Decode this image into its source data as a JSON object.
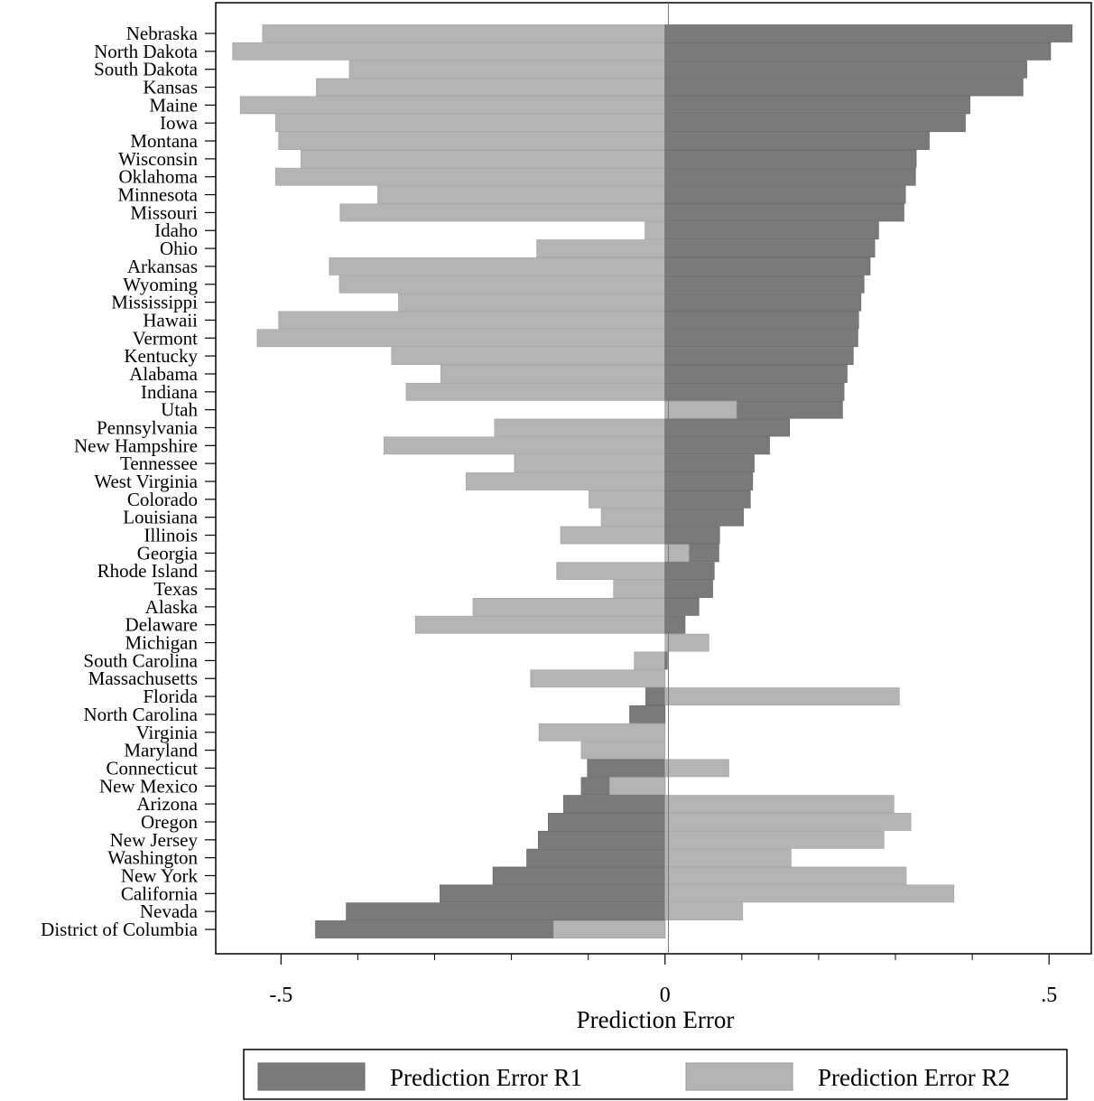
{
  "chart_data": {
    "type": "bar",
    "orientation": "horizontal",
    "xlabel": "Prediction Error",
    "ylabel": "",
    "xlim": [
      -0.585,
      0.555
    ],
    "xticks": [
      -0.5,
      0,
      0.5
    ],
    "xtick_labels": [
      "-.5",
      "0",
      ".5"
    ],
    "minor_xticks": [
      -0.4,
      -0.3,
      -0.2,
      -0.1,
      0.1,
      0.2,
      0.3,
      0.4
    ],
    "grid": false,
    "legend": {
      "position": "bottom"
    },
    "categories": [
      "Nebraska",
      "North Dakota",
      "South Dakota",
      "Kansas",
      "Maine",
      "Iowa",
      "Montana",
      "Wisconsin",
      "Oklahoma",
      "Minnesota",
      "Missouri",
      "Idaho",
      "Ohio",
      "Arkansas",
      "Wyoming",
      "Mississippi",
      "Hawaii",
      "Vermont",
      "Kentucky",
      "Alabama",
      "Indiana",
      "Utah",
      "Pennsylvania",
      "New Hampshire",
      "Tennessee",
      "West Virginia",
      "Colorado",
      "Louisiana",
      "Illinois",
      "Georgia",
      "Rhode Island",
      "Texas",
      "Alaska",
      "Delaware",
      "Michigan",
      "South Carolina",
      "Massachusetts",
      "Florida",
      "North Carolina",
      "Virginia",
      "Maryland",
      "Connecticut",
      "New Mexico",
      "Arizona",
      "Oregon",
      "New Jersey",
      "Washington",
      "New York",
      "California",
      "Nevada",
      "District of Columbia"
    ],
    "series": [
      {
        "name": "Prediction Error R1",
        "color": "#7a7a7a",
        "values": [
          0.53,
          0.502,
          0.471,
          0.466,
          0.397,
          0.391,
          0.344,
          0.327,
          0.326,
          0.313,
          0.311,
          0.278,
          0.273,
          0.267,
          0.259,
          0.255,
          0.252,
          0.251,
          0.245,
          0.237,
          0.233,
          0.231,
          0.162,
          0.136,
          0.116,
          0.114,
          0.111,
          0.102,
          0.071,
          0.07,
          0.064,
          0.062,
          0.044,
          0.026,
          0.0,
          0.003,
          0.0,
          -0.025,
          -0.046,
          0.0,
          0.0,
          -0.101,
          -0.109,
          -0.132,
          -0.152,
          -0.165,
          -0.18,
          -0.224,
          -0.293,
          -0.415,
          -0.455
        ]
      },
      {
        "name": "Prediction Error R2",
        "color": "#b4b4b4",
        "values": [
          -0.524,
          -0.563,
          -0.411,
          -0.454,
          -0.553,
          -0.507,
          -0.503,
          -0.474,
          -0.507,
          -0.374,
          -0.423,
          -0.026,
          -0.167,
          -0.437,
          -0.424,
          -0.347,
          -0.503,
          -0.531,
          -0.356,
          -0.292,
          -0.337,
          0.093,
          -0.222,
          -0.366,
          -0.196,
          -0.259,
          -0.099,
          -0.083,
          -0.136,
          0.031,
          -0.141,
          -0.067,
          -0.25,
          -0.325,
          0.057,
          -0.04,
          -0.175,
          0.305,
          0.0,
          -0.164,
          -0.109,
          0.083,
          -0.072,
          0.298,
          0.32,
          0.285,
          0.164,
          0.314,
          0.376,
          0.101,
          -0.145
        ]
      }
    ]
  }
}
